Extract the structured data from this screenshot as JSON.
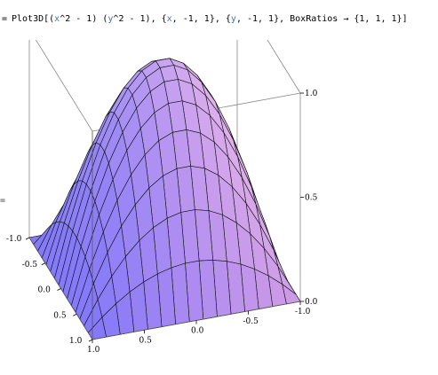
{
  "notebook": {
    "input_prompt": "=",
    "output_marker": "="
  },
  "input": {
    "prefix": "Plot3D[(",
    "var_x": "x",
    "mid1": "^2 - 1) (",
    "var_y": "y",
    "mid2": "^2 - 1), {",
    "var_x2": "x",
    "mid3": ", -1, 1}, {",
    "var_y2": "y",
    "mid4": ", -1, 1}, BoxRatios → {1, 1, 1}]"
  },
  "chart_data": {
    "type": "surface3d",
    "function": "(x^2 - 1) (y^2 - 1)",
    "x_range": [
      -1,
      1
    ],
    "y_range": [
      -1,
      1
    ],
    "z_range": [
      0,
      1
    ],
    "box_ratios": [
      1,
      1,
      1
    ],
    "mesh_lines": 15,
    "grid_points": [
      {
        "x": -1,
        "y": -1,
        "z": 0
      },
      {
        "x": 0,
        "y": 0,
        "z": 1
      },
      {
        "x": 1,
        "y": 1,
        "z": 0
      },
      {
        "x": 0.5,
        "y": 0.5,
        "z": 0.5625
      },
      {
        "x": -0.5,
        "y": 0.5,
        "z": 0.5625
      }
    ],
    "axes": {
      "x_ticks": [
        "-1.0",
        "-0.5",
        "0.0",
        "0.5",
        "1.0"
      ],
      "y_ticks": [
        "1.0",
        "0.5",
        "0.0",
        "-0.5",
        "-1.0"
      ],
      "z_ticks": [
        "0.0",
        "0.5",
        "1.0"
      ]
    }
  }
}
